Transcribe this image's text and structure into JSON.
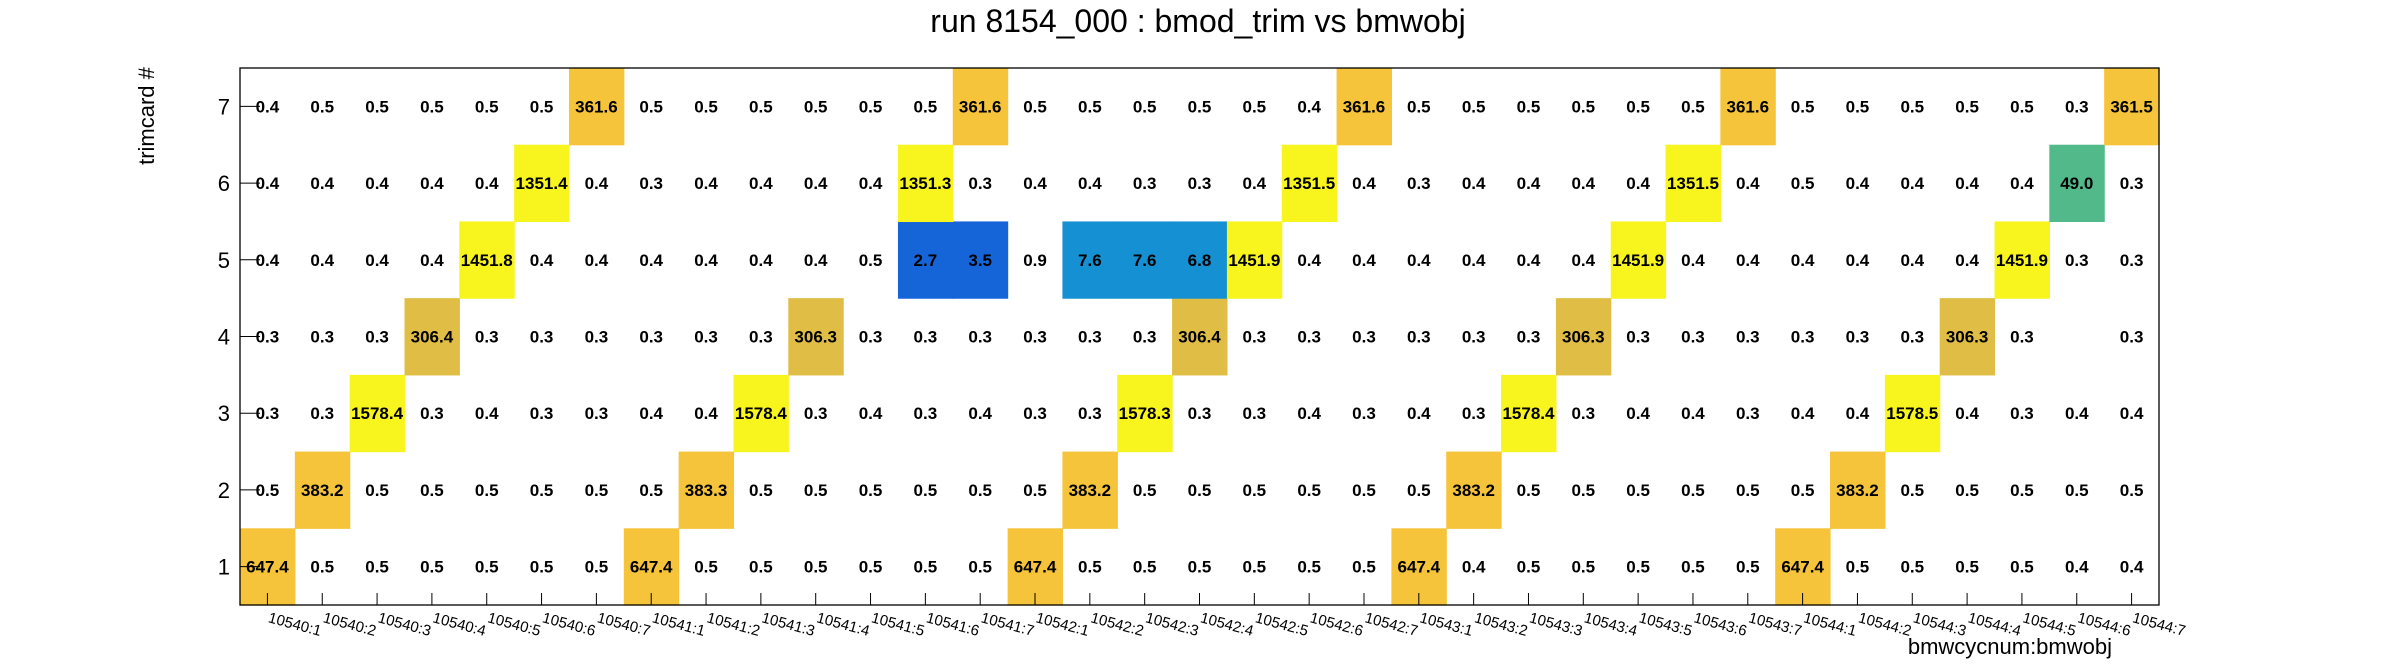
{
  "chart_data": {
    "type": "heatmap",
    "title": "run 8154_000 : bmod_trim vs bmwobj",
    "xlabel": "bmwcycnum:bmwobj",
    "ylabel": "trimcard #",
    "x_categories": [
      "10540:1",
      "10540:2",
      "10540:3",
      "10540:4",
      "10540:5",
      "10540:6",
      "10540:7",
      "10541:1",
      "10541:2",
      "10541:3",
      "10541:4",
      "10541:5",
      "10541:6",
      "10541:7",
      "10542:1",
      "10542:2",
      "10542:3",
      "10542:4",
      "10542:5",
      "10542:6",
      "10542:7",
      "10543:1",
      "10543:2",
      "10543:3",
      "10543:4",
      "10543:5",
      "10543:6",
      "10543:7",
      "10544:1",
      "10544:2",
      "10544:3",
      "10544:4",
      "10544:5",
      "10544:6",
      "10544:7"
    ],
    "y_categories": [
      "1",
      "2",
      "3",
      "4",
      "5",
      "6",
      "7"
    ],
    "rows": [
      [
        "647.4",
        "0.5",
        "0.5",
        "0.5",
        "0.5",
        "0.5",
        "0.5",
        "647.4",
        "0.5",
        "0.5",
        "0.5",
        "0.5",
        "0.5",
        "0.5",
        "647.4",
        "0.5",
        "0.5",
        "0.5",
        "0.5",
        "0.5",
        "0.5",
        "647.4",
        "0.4",
        "0.5",
        "0.5",
        "0.5",
        "0.5",
        "0.5",
        "647.4",
        "0.5",
        "0.5",
        "0.5",
        "0.5",
        "0.4",
        "0.4"
      ],
      [
        "0.5",
        "383.2",
        "0.5",
        "0.5",
        "0.5",
        "0.5",
        "0.5",
        "0.5",
        "383.3",
        "0.5",
        "0.5",
        "0.5",
        "0.5",
        "0.5",
        "0.5",
        "383.2",
        "0.5",
        "0.5",
        "0.5",
        "0.5",
        "0.5",
        "0.5",
        "383.2",
        "0.5",
        "0.5",
        "0.5",
        "0.5",
        "0.5",
        "0.5",
        "383.2",
        "0.5",
        "0.5",
        "0.5",
        "0.5",
        "0.5"
      ],
      [
        "0.3",
        "0.3",
        "1578.4",
        "0.3",
        "0.4",
        "0.3",
        "0.3",
        "0.4",
        "0.4",
        "1578.4",
        "0.3",
        "0.4",
        "0.3",
        "0.4",
        "0.3",
        "0.3",
        "1578.3",
        "0.3",
        "0.3",
        "0.4",
        "0.3",
        "0.4",
        "0.3",
        "1578.4",
        "0.3",
        "0.4",
        "0.4",
        "0.3",
        "0.4",
        "0.4",
        "1578.5",
        "0.4",
        "0.3",
        "0.4",
        "0.4"
      ],
      [
        "0.3",
        "0.3",
        "0.3",
        "306.4",
        "0.3",
        "0.3",
        "0.3",
        "0.3",
        "0.3",
        "0.3",
        "306.3",
        "0.3",
        "0.3",
        "0.3",
        "0.3",
        "0.3",
        "0.3",
        "306.4",
        "0.3",
        "0.3",
        "0.3",
        "0.3",
        "0.3",
        "0.3",
        "306.3",
        "0.3",
        "0.3",
        "0.3",
        "0.3",
        "0.3",
        "0.3",
        "306.3",
        "0.3",
        "",
        "0.3"
      ],
      [
        "0.4",
        "0.4",
        "0.4",
        "0.4",
        "1451.8",
        "0.4",
        "0.4",
        "0.4",
        "0.4",
        "0.4",
        "0.4",
        "0.5",
        "2.7",
        "3.5",
        "0.9",
        "7.6",
        "7.6",
        "6.8",
        "1451.9",
        "0.4",
        "0.4",
        "0.4",
        "0.4",
        "0.4",
        "0.4",
        "1451.9",
        "0.4",
        "0.4",
        "0.4",
        "0.4",
        "0.4",
        "0.4",
        "1451.9",
        "0.3",
        "0.3"
      ],
      [
        "0.4",
        "0.4",
        "0.4",
        "0.4",
        "0.4",
        "1351.4",
        "0.4",
        "0.3",
        "0.4",
        "0.4",
        "0.4",
        "0.4",
        "1351.3",
        "0.3",
        "0.4",
        "0.4",
        "0.3",
        "0.3",
        "0.4",
        "1351.5",
        "0.4",
        "0.3",
        "0.4",
        "0.4",
        "0.4",
        "0.4",
        "1351.5",
        "0.4",
        "0.5",
        "0.4",
        "0.4",
        "0.4",
        "0.4",
        "49.0",
        "0.3"
      ],
      [
        "0.4",
        "0.5",
        "0.5",
        "0.5",
        "0.5",
        "0.5",
        "361.6",
        "0.5",
        "0.5",
        "0.5",
        "0.5",
        "0.5",
        "0.5",
        "361.6",
        "0.5",
        "0.5",
        "0.5",
        "0.5",
        "0.5",
        "0.4",
        "361.6",
        "0.5",
        "0.5",
        "0.5",
        "0.5",
        "0.5",
        "0.5",
        "361.6",
        "0.5",
        "0.5",
        "0.5",
        "0.5",
        "0.5",
        "0.3",
        "361.5"
      ]
    ],
    "colors": {
      "c_647": "#f5c43a",
      "c_383": "#f5c43a",
      "c_1578": "#f7f41e",
      "c_306": "#e0bd45",
      "c_1451": "#f7f41e",
      "c_1351": "#f7f41e",
      "c_361": "#f5c43a",
      "c_49": "#52b98b",
      "c_7": "#1590d2",
      "c_3": "#1565d9",
      "border": "#000000"
    }
  }
}
